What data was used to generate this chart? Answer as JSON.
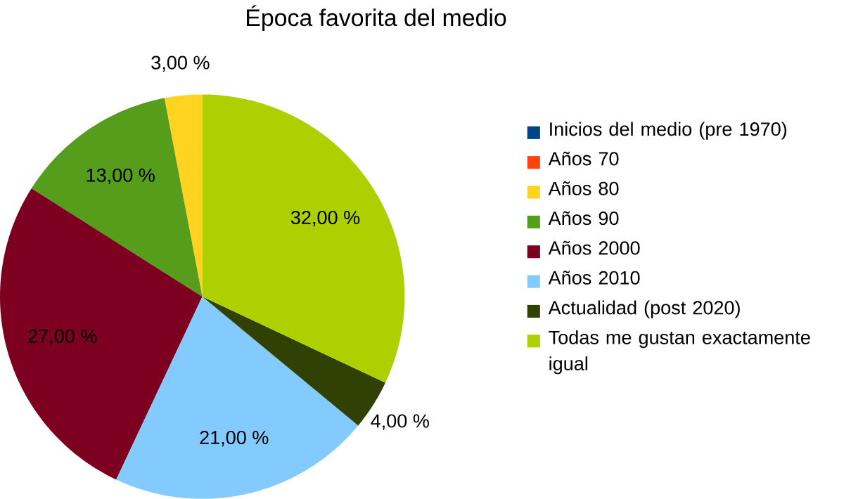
{
  "chart_data": {
    "type": "pie",
    "title": "Época favorita del medio",
    "categories": [
      "Inicios del medio (pre 1970)",
      "Años 70",
      "Años 80",
      "Años 90",
      "Años 2000",
      "Años 2010",
      "Actualidad (post 2020)",
      "Todas me gustan exactamente igual"
    ],
    "values": [
      0,
      0,
      3,
      13,
      27,
      21,
      4,
      32
    ],
    "value_labels": [
      null,
      null,
      "3,00 %",
      "13,00 %",
      "27,00 %",
      "21,00 %",
      "4,00 %",
      "32,00 %"
    ],
    "colors": [
      "#004586",
      "#ff420e",
      "#ffd320",
      "#579d1c",
      "#7e0021",
      "#83caff",
      "#314004",
      "#aecf00"
    ],
    "legend": "right"
  }
}
